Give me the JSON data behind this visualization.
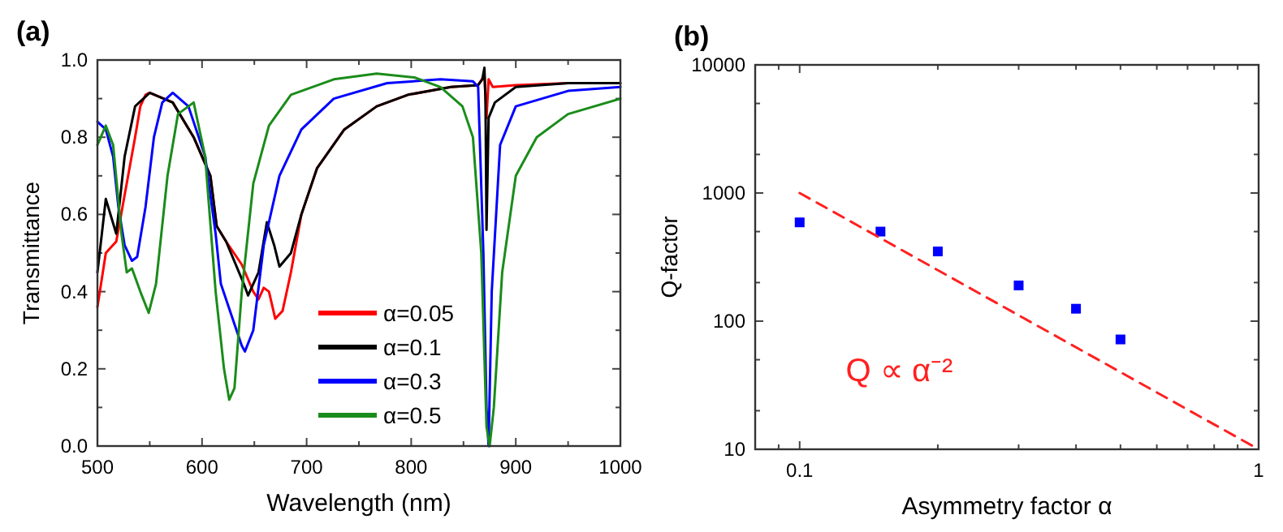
{
  "chart_data": [
    {
      "type": "line",
      "title": "(a)",
      "xlabel": "Wavelength (nm)",
      "ylabel": "Transmittance",
      "xlim": [
        500,
        1000
      ],
      "ylim": [
        0,
        1
      ],
      "xticks": [
        500,
        {
          "value": 550,
          "label": null
        },
        600,
        {
          "value": 650,
          "label": null
        },
        700,
        {
          "value": 750,
          "label": null
        },
        800,
        {
          "value": 850,
          "label": null
        },
        900,
        {
          "value": 950,
          "label": null
        },
        1000
      ],
      "yticks": [
        {
          "value": 0,
          "label": "0.0"
        },
        {
          "value": 0.1,
          "label": null
        },
        {
          "value": 0.2,
          "label": "0.2"
        },
        {
          "value": 0.3,
          "label": null
        },
        {
          "value": 0.4,
          "label": "0.4"
        },
        {
          "value": 0.5,
          "label": null
        },
        {
          "value": 0.6,
          "label": "0.6"
        },
        {
          "value": 0.7,
          "label": null
        },
        {
          "value": 0.8,
          "label": "0.8"
        },
        {
          "value": 0.9,
          "label": null
        },
        {
          "value": 1,
          "label": "1.0"
        }
      ],
      "legend": "bottom",
      "series": [
        {
          "name": "α=0.05",
          "color": "#ff0000",
          "x": [
            500,
            508,
            518,
            526,
            536,
            541,
            546,
            550,
            572,
            592,
            608,
            614,
            623,
            638,
            649,
            654,
            659,
            664,
            670,
            677,
            685,
            695,
            710,
            736,
            767,
            797,
            838,
            864,
            870,
            872,
            874,
            878,
            900,
            950,
            1000
          ],
          "values": [
            0.36,
            0.5,
            0.53,
            0.65,
            0.8,
            0.88,
            0.91,
            0.915,
            0.89,
            0.8,
            0.7,
            0.57,
            0.53,
            0.47,
            0.4,
            0.38,
            0.41,
            0.4,
            0.33,
            0.35,
            0.45,
            0.6,
            0.72,
            0.82,
            0.88,
            0.91,
            0.93,
            0.935,
            0.96,
            0.85,
            0.95,
            0.93,
            0.935,
            0.94,
            0.94
          ]
        },
        {
          "name": "α=0.1",
          "color": "#000000",
          "x": [
            500,
            508,
            518,
            526,
            536,
            550,
            572,
            592,
            608,
            614,
            623,
            640,
            644,
            654,
            662,
            669,
            674,
            685,
            695,
            710,
            736,
            767,
            797,
            838,
            864,
            868,
            870,
            871,
            872,
            874,
            880,
            900,
            950,
            1000
          ],
          "values": [
            0.45,
            0.64,
            0.55,
            0.75,
            0.88,
            0.915,
            0.89,
            0.8,
            0.7,
            0.57,
            0.53,
            0.42,
            0.39,
            0.45,
            0.58,
            0.52,
            0.465,
            0.5,
            0.6,
            0.72,
            0.82,
            0.88,
            0.91,
            0.93,
            0.935,
            0.95,
            0.98,
            0.9,
            0.56,
            0.85,
            0.89,
            0.93,
            0.94,
            0.94
          ]
        },
        {
          "name": "α=0.3",
          "color": "#0000ff",
          "x": [
            500,
            508,
            515,
            520,
            526,
            533,
            538,
            546,
            554,
            562,
            572,
            587,
            603,
            613,
            618,
            628,
            638,
            641,
            649,
            659,
            674,
            695,
            726,
            777,
            828,
            859,
            864,
            869,
            872,
            874,
            877,
            885,
            900,
            950,
            1000
          ],
          "values": [
            0.84,
            0.82,
            0.75,
            0.62,
            0.52,
            0.48,
            0.49,
            0.62,
            0.8,
            0.89,
            0.915,
            0.88,
            0.75,
            0.55,
            0.42,
            0.34,
            0.26,
            0.245,
            0.3,
            0.52,
            0.7,
            0.82,
            0.9,
            0.94,
            0.95,
            0.945,
            0.93,
            0.5,
            0.1,
            0.0,
            0.4,
            0.78,
            0.88,
            0.92,
            0.93
          ]
        },
        {
          "name": "α=0.5",
          "color": "#1a8c1a",
          "x": [
            500,
            508,
            515,
            523,
            528,
            533,
            541,
            549,
            556,
            567,
            577,
            592,
            603,
            613,
            621,
            626,
            631,
            638,
            649,
            664,
            685,
            726,
            767,
            803,
            828,
            849,
            859,
            867,
            872,
            875,
            879,
            887,
            900,
            920,
            950,
            1000
          ],
          "values": [
            0.78,
            0.83,
            0.78,
            0.55,
            0.45,
            0.46,
            0.4,
            0.345,
            0.42,
            0.7,
            0.86,
            0.89,
            0.75,
            0.4,
            0.2,
            0.12,
            0.15,
            0.4,
            0.68,
            0.83,
            0.91,
            0.95,
            0.965,
            0.955,
            0.93,
            0.88,
            0.8,
            0.5,
            0.05,
            0.0,
            0.1,
            0.45,
            0.7,
            0.8,
            0.86,
            0.9
          ]
        }
      ]
    },
    {
      "type": "scatter",
      "title": "(b)",
      "xlabel": "Asymmetry factor α",
      "ylabel": "Q-factor",
      "log": "xy",
      "xlim": [
        0.08,
        1
      ],
      "ylim": [
        10,
        10000
      ],
      "xticks": [
        {
          "value": 0.09,
          "label": null
        },
        0.1,
        {
          "value": 0.2,
          "label": null
        },
        {
          "value": 0.3,
          "label": null
        },
        {
          "value": 0.4,
          "label": null
        },
        {
          "value": 0.5,
          "label": null
        },
        {
          "value": 0.6,
          "label": null
        },
        {
          "value": 0.7,
          "label": null
        },
        {
          "value": 0.8,
          "label": null
        },
        {
          "value": 0.9,
          "label": null
        },
        1
      ],
      "yticks": [
        10,
        {
          "value": 20,
          "label": null
        },
        {
          "value": 50,
          "label": null
        },
        100,
        {
          "value": 200,
          "label": null
        },
        {
          "value": 500,
          "label": null
        },
        1000,
        {
          "value": 2000,
          "label": null
        },
        {
          "value": 5000,
          "label": null
        },
        10000
      ],
      "legend": false,
      "annotations": [
        "Q ∝ α⁻²"
      ],
      "series": [
        {
          "marker": "square",
          "color": "#0000ff",
          "x": [
            0.1,
            0.15,
            0.2,
            0.3,
            0.4,
            0.5
          ],
          "values": [
            590,
            500,
            350,
            190,
            125,
            72
          ]
        },
        {
          "type": "line",
          "color": "#ff2020",
          "line_style": "dashed",
          "x": [
            0.1,
            1
          ],
          "values": [
            1000,
            10
          ]
        }
      ]
    }
  ]
}
